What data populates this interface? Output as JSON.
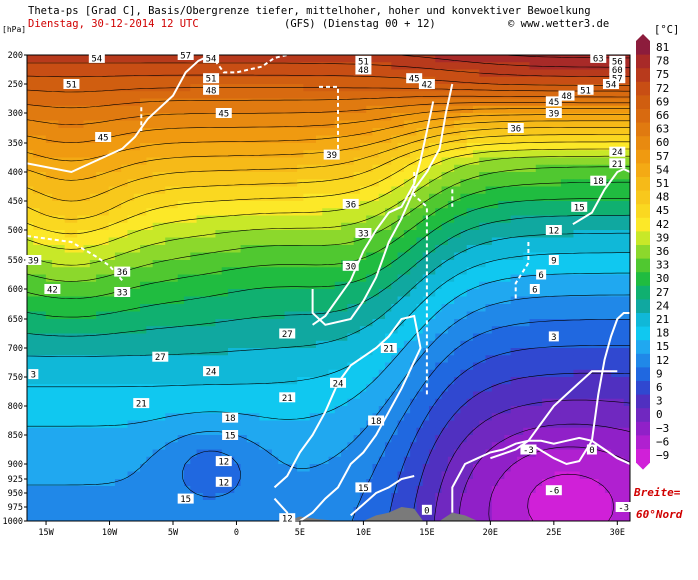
{
  "header": {
    "title_line": "Theta-ps [Grad C], Basis/Obergrenze tiefer, mittelhoher, hoher und konvektiver Bewoelkung",
    "date_line": "Dienstag, 30-12-2014  12 UTC",
    "run_line": "(GFS)  (Dienstag 00 + 12)",
    "copyright": "© www.wetter3.de"
  },
  "annotation": {
    "breite_line1": "Breite=",
    "breite_line2": "60°Nord"
  },
  "chart_data": {
    "type": "heatmap",
    "title": "Theta-ps [Grad C], Basis/Obergrenze tiefer, mittelhoher, hoher und konvektiver Bewoelkung",
    "xlabel": "",
    "ylabel": "[hPa]",
    "x_ticks": [
      "15W",
      "10W",
      "5W",
      "0",
      "5E",
      "10E",
      "15E",
      "20E",
      "25E",
      "30E"
    ],
    "x_tick_values": [
      -15,
      -10,
      -5,
      0,
      5,
      10,
      15,
      20,
      25,
      30
    ],
    "xlim": [
      -16.5,
      31
    ],
    "y_ticks": [
      "200",
      "250",
      "300",
      "350",
      "400",
      "450",
      "500",
      "550",
      "600",
      "650",
      "700",
      "750",
      "800",
      "850",
      "900",
      "925",
      "950",
      "975",
      "1000"
    ],
    "y_tick_values": [
      200,
      250,
      300,
      350,
      400,
      450,
      500,
      550,
      600,
      650,
      700,
      750,
      800,
      850,
      900,
      925,
      950,
      975,
      1000
    ],
    "ylim": [
      1000,
      200
    ],
    "colorbar_unit": "[°C]",
    "colorbar_levels": [
      81,
      78,
      75,
      72,
      69,
      66,
      63,
      60,
      57,
      54,
      51,
      48,
      45,
      42,
      39,
      36,
      33,
      30,
      27,
      24,
      21,
      18,
      15,
      12,
      9,
      6,
      3,
      0,
      -3,
      -6,
      -9
    ],
    "colorbar_colors": [
      "#8c1c3c",
      "#a82a28",
      "#b83a1c",
      "#c84e14",
      "#d05e10",
      "#d86a10",
      "#e07a10",
      "#e88a10",
      "#f09a10",
      "#f4aa14",
      "#f6ba18",
      "#f8c81c",
      "#fad820",
      "#fce828",
      "#c8e828",
      "#8cd82c",
      "#50c830",
      "#20bc40",
      "#10b070",
      "#10a8a0",
      "#10b8d8",
      "#10c8f0",
      "#20a8f0",
      "#2088e8",
      "#2068e0",
      "#3048d0",
      "#5030c0",
      "#7028c0",
      "#9020c8",
      "#b020d0",
      "#d020d8"
    ],
    "contour_labels": [
      {
        "x": -13,
        "p": 250,
        "v": "51"
      },
      {
        "x": -11,
        "p": 205,
        "v": "54"
      },
      {
        "x": -4,
        "p": 200,
        "v": "57"
      },
      {
        "x": -2,
        "p": 205,
        "v": "54"
      },
      {
        "x": -2,
        "p": 240,
        "v": "51"
      },
      {
        "x": -2,
        "p": 260,
        "v": "48"
      },
      {
        "x": -1,
        "p": 300,
        "v": "45"
      },
      {
        "x": 10,
        "p": 210,
        "v": "51"
      },
      {
        "x": 10,
        "p": 225,
        "v": "48"
      },
      {
        "x": 14,
        "p": 240,
        "v": "45"
      },
      {
        "x": 15,
        "p": 250,
        "v": "42"
      },
      {
        "x": 28.5,
        "p": 205,
        "v": "63"
      },
      {
        "x": 30,
        "p": 210,
        "v": "56"
      },
      {
        "x": 30,
        "p": 225,
        "v": "60"
      },
      {
        "x": 30,
        "p": 240,
        "v": "57"
      },
      {
        "x": 29.5,
        "p": 250,
        "v": "54"
      },
      {
        "x": 27.5,
        "p": 260,
        "v": "51"
      },
      {
        "x": 26,
        "p": 270,
        "v": "48"
      },
      {
        "x": 25,
        "p": 280,
        "v": "45"
      },
      {
        "x": 25,
        "p": 300,
        "v": "39"
      },
      {
        "x": 22,
        "p": 325,
        "v": "36"
      },
      {
        "x": 30,
        "p": 365,
        "v": "24"
      },
      {
        "x": 30,
        "p": 385,
        "v": "21"
      },
      {
        "x": 28.5,
        "p": 415,
        "v": "18"
      },
      {
        "x": 27,
        "p": 460,
        "v": "15"
      },
      {
        "x": 25,
        "p": 500,
        "v": "12"
      },
      {
        "x": 25,
        "p": 550,
        "v": "9"
      },
      {
        "x": 23.5,
        "p": 600,
        "v": "6"
      },
      {
        "x": 25,
        "p": 680,
        "v": "3"
      },
      {
        "x": -10.5,
        "p": 340,
        "v": "45"
      },
      {
        "x": 7.5,
        "p": 370,
        "v": "39"
      },
      {
        "x": 9,
        "p": 455,
        "v": "36"
      },
      {
        "x": 10,
        "p": 505,
        "v": "33"
      },
      {
        "x": 9,
        "p": 560,
        "v": "30"
      },
      {
        "x": -9,
        "p": 570,
        "v": "36"
      },
      {
        "x": -9,
        "p": 605,
        "v": "33"
      },
      {
        "x": -14.5,
        "p": 600,
        "v": "42"
      },
      {
        "x": -16,
        "p": 550,
        "v": "39"
      },
      {
        "x": 4,
        "p": 675,
        "v": "27"
      },
      {
        "x": -6,
        "p": 715,
        "v": "27"
      },
      {
        "x": -2,
        "p": 740,
        "v": "24"
      },
      {
        "x": 8,
        "p": 760,
        "v": "24"
      },
      {
        "x": 4,
        "p": 785,
        "v": "21"
      },
      {
        "x": -7.5,
        "p": 795,
        "v": "21"
      },
      {
        "x": 12,
        "p": 700,
        "v": "21"
      },
      {
        "x": -0.5,
        "p": 820,
        "v": "18"
      },
      {
        "x": -0.5,
        "p": 850,
        "v": "15"
      },
      {
        "x": 11,
        "p": 825,
        "v": "18"
      },
      {
        "x": -1,
        "p": 895,
        "v": "12"
      },
      {
        "x": -1,
        "p": 930,
        "v": "12"
      },
      {
        "x": -4,
        "p": 960,
        "v": "15"
      },
      {
        "x": 10,
        "p": 940,
        "v": "15"
      },
      {
        "x": 4,
        "p": 995,
        "v": "12"
      },
      {
        "x": 15,
        "p": 980,
        "v": "0"
      },
      {
        "x": 23,
        "p": 875,
        "v": "-3"
      },
      {
        "x": 28,
        "p": 875,
        "v": "0"
      },
      {
        "x": 25,
        "p": 945,
        "v": "-6"
      },
      {
        "x": 30.5,
        "p": 975,
        "v": "-3"
      },
      {
        "x": 24,
        "p": 575,
        "v": "6"
      },
      {
        "x": -16,
        "p": 745,
        "v": "3"
      }
    ]
  }
}
